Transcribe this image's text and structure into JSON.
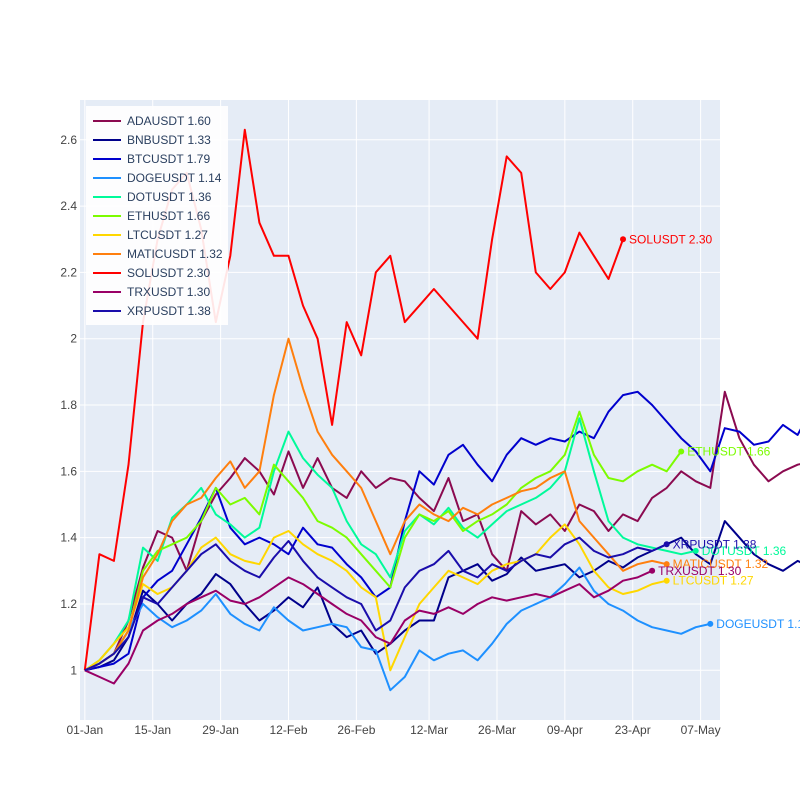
{
  "chart_data": {
    "type": "line",
    "title": "",
    "xlabel": "",
    "ylabel": "",
    "x_ticks": [
      "01-Jan",
      "15-Jan",
      "29-Jan",
      "12-Feb",
      "26-Feb",
      "12-Mar",
      "26-Mar",
      "09-Apr",
      "23-Apr",
      "07-May"
    ],
    "x_start": "2024-01-01",
    "x_step_days": 3,
    "xlim": [
      "2023-12-31",
      "2024-05-11"
    ],
    "ylim": [
      0.85,
      2.72
    ],
    "y_ticks": [
      1,
      1.2,
      1.4,
      1.6,
      1.8,
      2,
      2.2,
      2.4,
      2.6
    ],
    "y_tick_labels": [
      "1",
      "1.2",
      "1.4",
      "1.6",
      "1.8",
      "2",
      "2.2",
      "2.4",
      "2.6"
    ],
    "grid": true,
    "legend_position": "top-left",
    "series": [
      {
        "name": "ADAUSDT",
        "label": "ADAUSDT 1.60",
        "color": "#8b0a50",
        "values": [
          1.0,
          1.02,
          1.05,
          1.15,
          1.31,
          1.42,
          1.4,
          1.3,
          1.45,
          1.53,
          1.58,
          1.64,
          1.6,
          1.53,
          1.66,
          1.55,
          1.64,
          1.55,
          1.52,
          1.6,
          1.55,
          1.58,
          1.57,
          1.52,
          1.48,
          1.58,
          1.45,
          1.47,
          1.35,
          1.3,
          1.48,
          1.44,
          1.47,
          1.42,
          1.5,
          1.48,
          1.42,
          1.47,
          1.45,
          1.52,
          1.55,
          1.6,
          1.57,
          1.55,
          1.84,
          1.7,
          1.62,
          1.57,
          1.6,
          1.62,
          1.63,
          1.59,
          1.6
        ]
      },
      {
        "name": "BNBUSDT",
        "label": "BNBUSDT 1.33",
        "color": "#00008b",
        "values": [
          1.0,
          1.01,
          1.03,
          1.1,
          1.24,
          1.2,
          1.15,
          1.2,
          1.23,
          1.29,
          1.26,
          1.2,
          1.15,
          1.18,
          1.22,
          1.19,
          1.25,
          1.14,
          1.1,
          1.12,
          1.05,
          1.08,
          1.12,
          1.15,
          1.15,
          1.28,
          1.3,
          1.32,
          1.27,
          1.29,
          1.34,
          1.3,
          1.31,
          1.32,
          1.28,
          1.3,
          1.33,
          1.31,
          1.34,
          1.36,
          1.38,
          1.4,
          1.35,
          1.32,
          1.45,
          1.4,
          1.35,
          1.32,
          1.3,
          1.33,
          1.31,
          1.34,
          1.33
        ]
      },
      {
        "name": "BTCUSDT",
        "label": "BTCUSDT 1.79",
        "color": "#0000cd",
        "values": [
          1.0,
          1.01,
          1.02,
          1.05,
          1.22,
          1.27,
          1.3,
          1.38,
          1.46,
          1.55,
          1.43,
          1.38,
          1.4,
          1.38,
          1.35,
          1.43,
          1.38,
          1.37,
          1.32,
          1.28,
          1.22,
          1.25,
          1.45,
          1.6,
          1.56,
          1.65,
          1.68,
          1.62,
          1.57,
          1.65,
          1.7,
          1.68,
          1.7,
          1.69,
          1.72,
          1.7,
          1.78,
          1.83,
          1.84,
          1.8,
          1.75,
          1.7,
          1.66,
          1.6,
          1.73,
          1.72,
          1.68,
          1.69,
          1.74,
          1.71,
          1.79
        ]
      },
      {
        "name": "DOGEUSDT",
        "label": "DOGEUSDT 1.14",
        "color": "#1e90ff",
        "values": [
          1.0,
          1.02,
          1.05,
          1.12,
          1.2,
          1.16,
          1.13,
          1.15,
          1.18,
          1.23,
          1.17,
          1.14,
          1.12,
          1.19,
          1.15,
          1.12,
          1.13,
          1.14,
          1.13,
          1.07,
          1.06,
          0.94,
          0.98,
          1.06,
          1.03,
          1.05,
          1.06,
          1.03,
          1.08,
          1.14,
          1.18,
          1.2,
          1.22,
          1.26,
          1.31,
          1.24,
          1.2,
          1.18,
          1.15,
          1.13,
          1.12,
          1.11,
          1.13,
          1.14
        ]
      },
      {
        "name": "DOTUSDT",
        "label": "DOTUSDT 1.36",
        "color": "#00fa9a",
        "values": [
          1.0,
          1.03,
          1.08,
          1.15,
          1.37,
          1.33,
          1.46,
          1.5,
          1.55,
          1.47,
          1.44,
          1.4,
          1.43,
          1.6,
          1.72,
          1.64,
          1.59,
          1.55,
          1.45,
          1.38,
          1.35,
          1.28,
          1.42,
          1.47,
          1.44,
          1.49,
          1.43,
          1.4,
          1.44,
          1.48,
          1.5,
          1.52,
          1.55,
          1.6,
          1.76,
          1.6,
          1.45,
          1.4,
          1.38,
          1.37,
          1.36,
          1.35,
          1.36
        ]
      },
      {
        "name": "ETHUSDT",
        "label": "ETHUSDT 1.66",
        "color": "#7cfc00",
        "values": [
          1.0,
          1.02,
          1.05,
          1.12,
          1.3,
          1.36,
          1.38,
          1.4,
          1.45,
          1.55,
          1.5,
          1.52,
          1.47,
          1.62,
          1.57,
          1.52,
          1.45,
          1.43,
          1.4,
          1.35,
          1.3,
          1.25,
          1.4,
          1.47,
          1.45,
          1.48,
          1.42,
          1.45,
          1.47,
          1.5,
          1.55,
          1.58,
          1.6,
          1.65,
          1.78,
          1.65,
          1.58,
          1.57,
          1.6,
          1.62,
          1.6,
          1.66
        ]
      },
      {
        "name": "LTCUSDT",
        "label": "LTCUSDT 1.27",
        "color": "#ffd700",
        "values": [
          1.0,
          1.03,
          1.08,
          1.13,
          1.26,
          1.23,
          1.25,
          1.3,
          1.37,
          1.4,
          1.35,
          1.33,
          1.32,
          1.4,
          1.42,
          1.38,
          1.35,
          1.33,
          1.3,
          1.25,
          1.22,
          1.0,
          1.1,
          1.2,
          1.25,
          1.3,
          1.28,
          1.26,
          1.3,
          1.32,
          1.33,
          1.35,
          1.4,
          1.44,
          1.38,
          1.3,
          1.25,
          1.23,
          1.24,
          1.26,
          1.27
        ]
      },
      {
        "name": "MATICUSDT",
        "label": "MATICUSDT 1.32",
        "color": "#ff7f0e",
        "values": [
          1.0,
          1.02,
          1.05,
          1.12,
          1.28,
          1.35,
          1.45,
          1.5,
          1.52,
          1.58,
          1.63,
          1.55,
          1.6,
          1.83,
          2.0,
          1.85,
          1.72,
          1.65,
          1.6,
          1.55,
          1.45,
          1.35,
          1.45,
          1.5,
          1.47,
          1.45,
          1.49,
          1.47,
          1.5,
          1.52,
          1.54,
          1.55,
          1.58,
          1.6,
          1.45,
          1.4,
          1.35,
          1.3,
          1.32,
          1.33,
          1.32
        ]
      },
      {
        "name": "SOLUSDT",
        "label": "SOLUSDT 2.30",
        "color": "#ff0000",
        "values": [
          1.0,
          1.35,
          1.33,
          1.62,
          2.05,
          2.3,
          2.45,
          2.5,
          2.33,
          2.05,
          2.25,
          2.63,
          2.35,
          2.25,
          2.25,
          2.1,
          2.0,
          1.74,
          2.05,
          1.95,
          2.2,
          2.25,
          2.05,
          2.1,
          2.15,
          2.1,
          2.05,
          2.0,
          2.3,
          2.55,
          2.5,
          2.2,
          2.15,
          2.2,
          2.32,
          2.25,
          2.18,
          2.3
        ]
      },
      {
        "name": "TRXUSDT",
        "label": "TRXUSDT 1.30",
        "color": "#990066",
        "values": [
          1.0,
          0.98,
          0.96,
          1.02,
          1.12,
          1.15,
          1.17,
          1.2,
          1.22,
          1.24,
          1.21,
          1.2,
          1.22,
          1.25,
          1.28,
          1.26,
          1.23,
          1.2,
          1.17,
          1.15,
          1.1,
          1.08,
          1.15,
          1.18,
          1.17,
          1.19,
          1.17,
          1.2,
          1.22,
          1.21,
          1.22,
          1.23,
          1.22,
          1.24,
          1.26,
          1.22,
          1.24,
          1.27,
          1.28,
          1.3
        ]
      },
      {
        "name": "XRPUSDT",
        "label": "XRPUSDT 1.38",
        "color": "#1a0dab",
        "values": [
          1.0,
          1.02,
          1.05,
          1.1,
          1.22,
          1.2,
          1.25,
          1.3,
          1.35,
          1.38,
          1.33,
          1.3,
          1.28,
          1.34,
          1.39,
          1.33,
          1.28,
          1.25,
          1.22,
          1.2,
          1.12,
          1.15,
          1.25,
          1.3,
          1.32,
          1.36,
          1.3,
          1.28,
          1.32,
          1.3,
          1.33,
          1.35,
          1.34,
          1.38,
          1.4,
          1.36,
          1.34,
          1.35,
          1.37,
          1.36,
          1.38
        ]
      }
    ]
  }
}
